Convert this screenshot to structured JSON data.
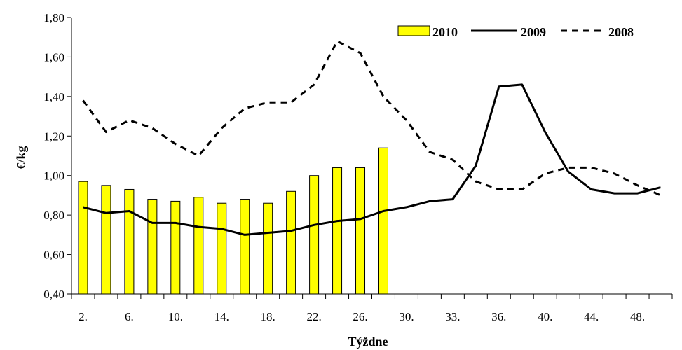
{
  "chart_data": {
    "type": "bar+line",
    "xlabel": "Týždne",
    "ylabel": "€/kg",
    "ylim": [
      0.4,
      1.8
    ],
    "yticks": [
      "0,40",
      "0,60",
      "0,80",
      "1,00",
      "1,20",
      "1,40",
      "1,60",
      "1,80"
    ],
    "ytick_values": [
      0.4,
      0.6,
      0.8,
      1.0,
      1.2,
      1.4,
      1.6,
      1.8
    ],
    "x_tick_labels": [
      "2.",
      "6.",
      "10.",
      "14.",
      "18.",
      "22.",
      "26.",
      "30.",
      "33.",
      "36.",
      "40.",
      "44.",
      "48."
    ],
    "grid": false,
    "legend_position": "top-right",
    "colors": {
      "bar_fill": "#ffff00",
      "bar_stroke": "#000000",
      "line": "#000000"
    },
    "series": [
      {
        "name": "2010",
        "kind": "bar",
        "values": [
          0.97,
          0.95,
          0.93,
          0.88,
          0.87,
          0.89,
          0.86,
          0.88,
          0.86,
          0.92,
          1.0,
          1.04,
          1.04,
          1.14
        ]
      },
      {
        "name": "2009",
        "kind": "line-solid",
        "values": [
          0.84,
          0.81,
          0.82,
          0.76,
          0.76,
          0.74,
          0.73,
          0.7,
          0.71,
          0.72,
          0.75,
          0.77,
          0.78,
          0.82,
          0.84,
          0.87,
          0.88,
          1.05,
          1.45,
          1.46,
          1.22,
          1.02,
          0.93,
          0.91,
          0.91,
          0.94
        ]
      },
      {
        "name": "2008",
        "kind": "line-dashed",
        "values": [
          1.38,
          1.22,
          1.28,
          1.24,
          1.16,
          1.1,
          1.24,
          1.34,
          1.37,
          1.37,
          1.46,
          1.68,
          1.62,
          1.4,
          1.28,
          1.12,
          1.08,
          0.97,
          0.93,
          0.93,
          1.01,
          1.04,
          1.04,
          1.01,
          0.95,
          0.9
        ]
      }
    ]
  }
}
